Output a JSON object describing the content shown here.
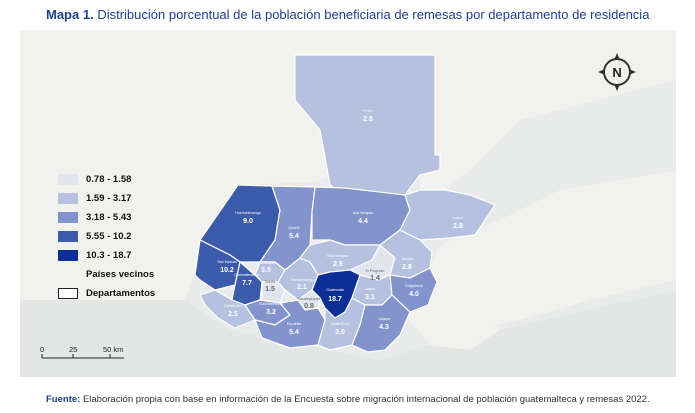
{
  "title": {
    "prefix": "Mapa 1.",
    "text": "Distribución porcentual de la población beneficiaria de remesas por departamento de residencia"
  },
  "legend": {
    "items": [
      {
        "label": "0.78 - 1.58",
        "color": "#e3e5ee"
      },
      {
        "label": "1.59 - 3.17",
        "color": "#b6c0df"
      },
      {
        "label": "3.18 - 5.43",
        "color": "#8393cc"
      },
      {
        "label": "5.55 - 10.2",
        "color": "#3d5bab"
      },
      {
        "label": "10.3 - 18.7",
        "color": "#0b2f94"
      },
      {
        "label": "Países vecinos",
        "color": "#f1f1ee"
      },
      {
        "label": "Departamentos",
        "color": "outline"
      }
    ]
  },
  "departments": [
    {
      "name": "Petén",
      "value": "2.8"
    },
    {
      "name": "Huehuetenango",
      "value": "9.0"
    },
    {
      "name": "Quiché",
      "value": "5.4"
    },
    {
      "name": "Alta Verapaz",
      "value": "4.4"
    },
    {
      "name": "Izabal",
      "value": "2.8"
    },
    {
      "name": "San Marcos",
      "value": "10.2"
    },
    {
      "name": "Totonicapán",
      "value": "3.5"
    },
    {
      "name": "Quetzaltenango",
      "value": "7.7"
    },
    {
      "name": "Sololá",
      "value": "1.5"
    },
    {
      "name": "Chimaltenango",
      "value": "2.1"
    },
    {
      "name": "Baja Verapaz",
      "value": "2.5"
    },
    {
      "name": "El Progreso",
      "value": "1.4"
    },
    {
      "name": "Zacapa",
      "value": "2.8"
    },
    {
      "name": "Guatemala",
      "value": "18.7"
    },
    {
      "name": "Sacatepéquez",
      "value": "0.8"
    },
    {
      "name": "Jalapa",
      "value": "3.1"
    },
    {
      "name": "Chiquimula",
      "value": "4.0"
    },
    {
      "name": "Retalhuleu",
      "value": "2.5"
    },
    {
      "name": "Suchitepéquez",
      "value": "3.2"
    },
    {
      "name": "Escuintla",
      "value": "5.4"
    },
    {
      "name": "Santa Rosa",
      "value": "3.0"
    },
    {
      "name": "Jutiapa",
      "value": "4.3"
    }
  ],
  "scale": {
    "t0": "0",
    "t1": "25",
    "t2": "50 km"
  },
  "compass": {
    "letter": "N"
  },
  "source": {
    "label": "Fuente:",
    "text": "Elaboración propia con base en información de la Encuesta sobre migración internacional de población guatemalteca y remesas 2022."
  }
}
